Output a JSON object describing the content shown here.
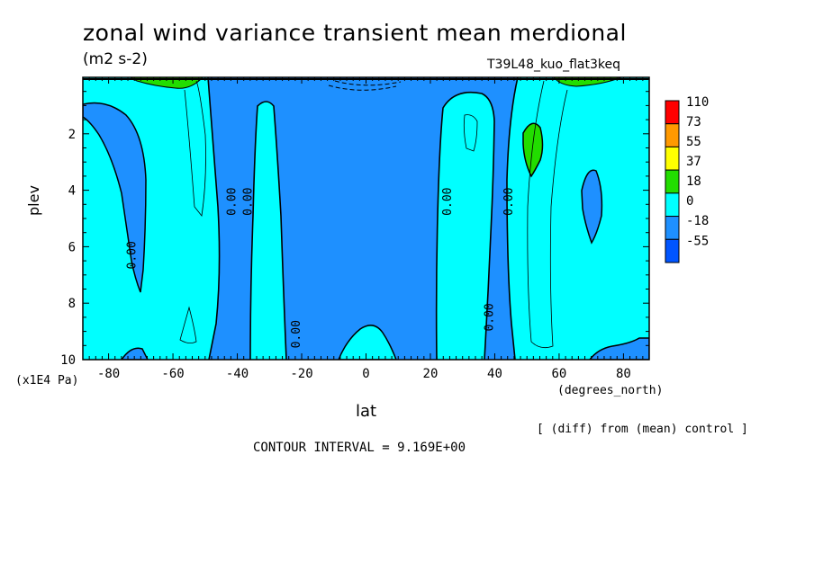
{
  "chart_data": {
    "type": "contour",
    "title": "zonal wind variance transient mean merdional",
    "units": "(m2 s-2)",
    "run_label": "T39L48_kuo_flat3keq",
    "xlabel": "lat",
    "x_unit_label": "(degrees_north)",
    "ylabel": "plev",
    "y_unit_label": "(x1E4 Pa)",
    "xlim": [
      -88,
      88
    ],
    "ylim": [
      10,
      0
    ],
    "x_ticks": [
      "-80",
      "-60",
      "-40",
      "-20",
      "0",
      "20",
      "40",
      "60",
      "80"
    ],
    "y_ticks": [
      "2",
      "4",
      "6",
      "8",
      "10"
    ],
    "colorbar_levels": [
      "110",
      "73",
      "55",
      "37",
      "18",
      "0",
      "-18",
      "-55"
    ],
    "colorbar_colors": [
      "#ff0000",
      "#ff9900",
      "#ffff00",
      "#22dd00",
      "#00ffff",
      "#1e90ff",
      "#0055ff"
    ],
    "contour_labels": [
      {
        "lat": -73,
        "plev": 6.3,
        "text": "0.00"
      },
      {
        "lat": -42,
        "plev": 4.4,
        "text": "0.00"
      },
      {
        "lat": -37,
        "plev": 4.4,
        "text": "0.00"
      },
      {
        "lat": -22,
        "plev": 9.1,
        "text": "0.00"
      },
      {
        "lat": 25,
        "plev": 4.4,
        "text": "0.00"
      },
      {
        "lat": 38,
        "plev": 8.5,
        "text": "0.00"
      },
      {
        "lat": 44,
        "plev": 4.4,
        "text": "0.00"
      }
    ],
    "contour_interval_text": "CONTOUR INTERVAL = 9.169E+00",
    "note": "[ (diff) from (mean) control ]",
    "colors": {
      "cyan": "#00ffff",
      "neg_light": "#1e90ff",
      "neg_dark": "#0055ff",
      "green": "#22dd00"
    }
  }
}
